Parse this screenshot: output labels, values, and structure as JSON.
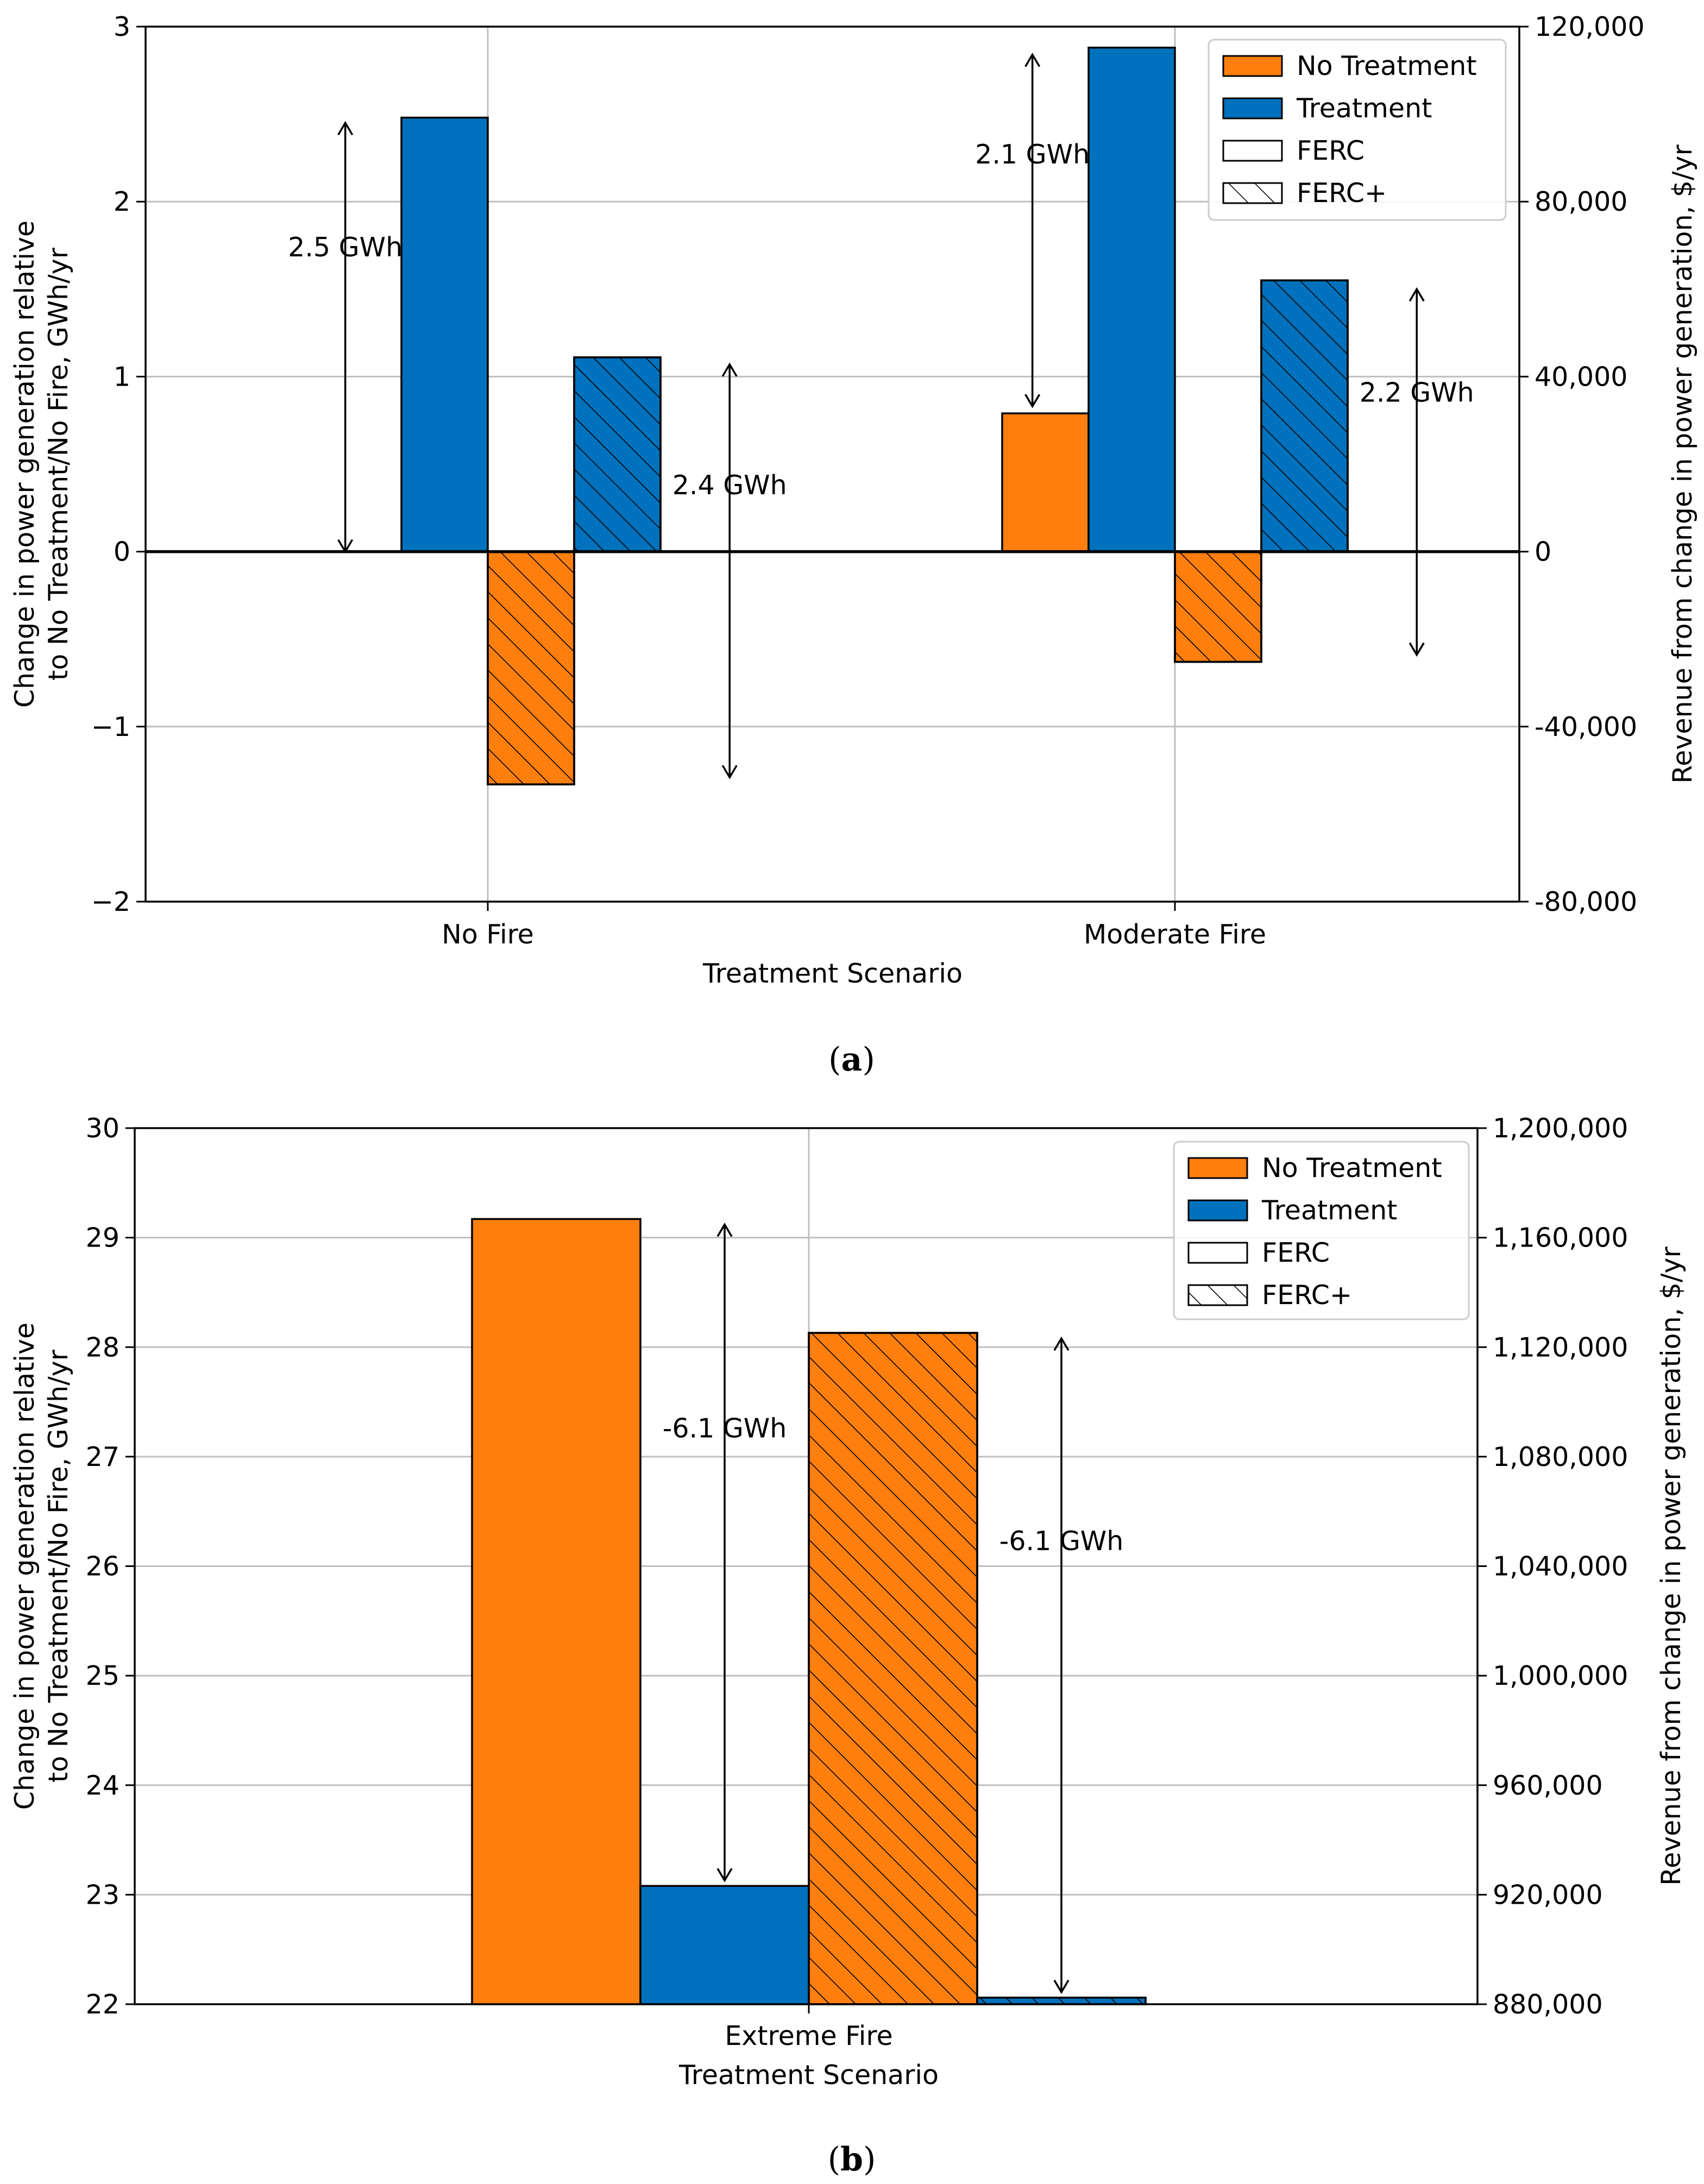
{
  "colors": {
    "no_treatment": "#FF7F0E",
    "treatment": "#0072BD",
    "grid": "#BFBFBF",
    "axis": "#000000",
    "legend_border": "#CCCCCC"
  },
  "chart_data": [
    {
      "panel": "a",
      "type": "bar",
      "caption_open": "(",
      "caption_letter": "a",
      "caption_close": ")",
      "categories": [
        "No Fire",
        "Moderate Fire"
      ],
      "xlabel": "Treatment Scenario",
      "ylabel_line1": "Change in power generation relative",
      "ylabel_line2": "to No Treatment/No Fire, GWh/yr",
      "ylabel_right": "Revenue from change in power generation, $/yr",
      "ylim": [
        -2,
        3
      ],
      "yticks": [
        -2,
        -1,
        0,
        1,
        2,
        3
      ],
      "ytick_labels": [
        "−2",
        "−1",
        "0",
        "1",
        "2",
        "3"
      ],
      "ylim_right": [
        -80000,
        120000
      ],
      "ytick_labels_right": [
        "-80,000",
        "-40,000",
        "0",
        "40,000",
        "80,000",
        "120,000"
      ],
      "grid": true,
      "series": [
        {
          "name": "No Treatment / FERC",
          "treatment": "no_treatment",
          "hatch": false,
          "values": [
            0.0,
            0.79
          ]
        },
        {
          "name": "Treatment / FERC",
          "treatment": "treatment",
          "hatch": false,
          "values": [
            2.48,
            2.88
          ]
        },
        {
          "name": "No Treatment / FERC+",
          "treatment": "no_treatment",
          "hatch": true,
          "values": [
            -1.33,
            -0.63
          ]
        },
        {
          "name": "Treatment / FERC+",
          "treatment": "treatment",
          "hatch": true,
          "values": [
            1.11,
            1.55
          ]
        }
      ],
      "annotations": [
        {
          "text": "2.5 GWh",
          "category": 0,
          "slot": -1.65,
          "from": 0.0,
          "to": 2.45,
          "label_y": 1.74
        },
        {
          "text": "2.4 GWh",
          "category": 0,
          "slot": 2.8,
          "from": -1.29,
          "to": 1.07,
          "label_y": 0.38
        },
        {
          "text": "2.1 GWh",
          "category": 1,
          "slot": -1.65,
          "from": 0.83,
          "to": 2.84,
          "label_y": 2.27
        },
        {
          "text": "2.2 GWh",
          "category": 1,
          "slot": 2.8,
          "from": -0.59,
          "to": 1.5,
          "label_y": 0.91
        }
      ],
      "legend": {
        "location": "top-right",
        "entries": [
          {
            "label": "No Treatment",
            "kind": "no_treatment"
          },
          {
            "label": "Treatment",
            "kind": "treatment"
          },
          {
            "label": "FERC",
            "kind": "plain"
          },
          {
            "label": "FERC+",
            "kind": "hatch"
          }
        ]
      }
    },
    {
      "panel": "b",
      "type": "bar",
      "caption_open": "(",
      "caption_letter": "b",
      "caption_close": ")",
      "categories": [
        "Extreme Fire"
      ],
      "xlabel": "Treatment Scenario",
      "ylabel_line1": "Change in power generation relative",
      "ylabel_line2": "to No Treatment/No Fire, GWh/yr",
      "ylabel_right": "Revenue from change in power generation, $/yr",
      "ylim": [
        22,
        30
      ],
      "yticks": [
        22,
        23,
        24,
        25,
        26,
        27,
        28,
        29,
        30
      ],
      "ytick_labels": [
        "22",
        "23",
        "24",
        "25",
        "26",
        "27",
        "28",
        "29",
        "30"
      ],
      "ylim_right": [
        880000,
        1200000
      ],
      "ytick_labels_right": [
        "880,000",
        "920,000",
        "960,000",
        "1,000,000",
        "1,040,000",
        "1,080,000",
        "1,120,000",
        "1,160,000",
        "1,200,000"
      ],
      "grid": true,
      "series": [
        {
          "name": "No Treatment / FERC",
          "treatment": "no_treatment",
          "hatch": false,
          "values": [
            29.17
          ]
        },
        {
          "name": "Treatment / FERC",
          "treatment": "treatment",
          "hatch": false,
          "values": [
            23.08
          ]
        },
        {
          "name": "No Treatment / FERC+",
          "treatment": "no_treatment",
          "hatch": true,
          "values": [
            28.13
          ]
        },
        {
          "name": "Treatment / FERC+",
          "treatment": "treatment",
          "hatch": true,
          "values": [
            22.06
          ]
        }
      ],
      "annotations": [
        {
          "text": "-6.1 GWh",
          "category": 0,
          "slot": -0.5,
          "from": 23.13,
          "to": 29.12,
          "label_y": 27.26
        },
        {
          "text": "-6.1 GWh",
          "category": 0,
          "slot": 1.5,
          "from": 22.11,
          "to": 28.08,
          "label_y": 26.23
        }
      ],
      "legend": {
        "location": "top-right",
        "entries": [
          {
            "label": "No Treatment",
            "kind": "no_treatment"
          },
          {
            "label": "Treatment",
            "kind": "treatment"
          },
          {
            "label": "FERC",
            "kind": "plain"
          },
          {
            "label": "FERC+",
            "kind": "hatch"
          }
        ]
      }
    }
  ]
}
